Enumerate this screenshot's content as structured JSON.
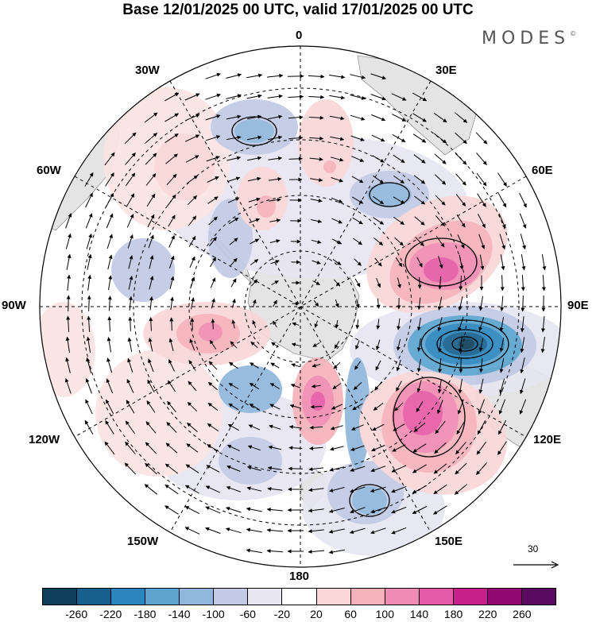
{
  "title": "Base 12/01/2025 00 UTC, valid 17/01/2025 00 UTC",
  "brand": "MODES",
  "brand_mark": "©",
  "longitude_labels": {
    "top": "0",
    "top_right": "30E",
    "upper_right": "60E",
    "right": "90E",
    "lower_right": "120E",
    "bottom_right": "150E",
    "bottom": "180",
    "bottom_left": "150W",
    "lower_left": "120W",
    "left": "90W",
    "upper_left": "60W",
    "top_left": "30W"
  },
  "reference_vector": "30",
  "colorbar": {
    "ticks": [
      "-260",
      "-220",
      "-180",
      "-140",
      "-100",
      "-60",
      "-20",
      "20",
      "60",
      "100",
      "140",
      "180",
      "220",
      "260"
    ],
    "colors": [
      "#0d3f5a",
      "#17608d",
      "#2c86bd",
      "#5ca4cf",
      "#90b7dc",
      "#c2c9e4",
      "#e7e6f2",
      "#ffffff",
      "#fad6d7",
      "#f6b1ba",
      "#f18bb3",
      "#e65ba7",
      "#c91f8a",
      "#910a74",
      "#5b0a62"
    ]
  },
  "map_features": {
    "projection": "south-polar-stereographic",
    "field": "shaded anomaly with wind vectors",
    "land_color": "#e8e8e8",
    "graticule": "dashed"
  }
}
